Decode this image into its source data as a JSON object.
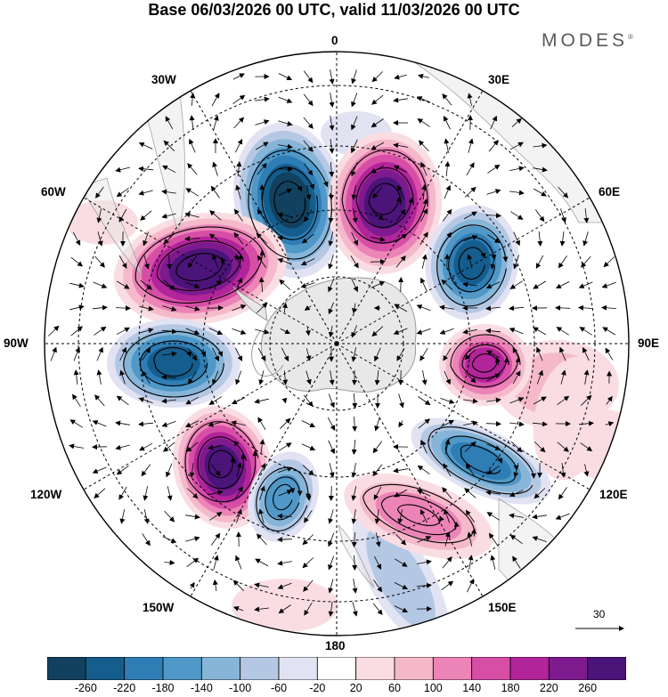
{
  "title": "Base 06/03/2026 00 UTC, valid 11/03/2026 00 UTC",
  "brand": "MODES",
  "brand_mark": "®",
  "longitude_labels": {
    "lon_0": "0",
    "lon_30e": "30E",
    "lon_60e": "60E",
    "lon_90e": "90E",
    "lon_120e": "120E",
    "lon_150e": "150E",
    "lon_180": "180",
    "lon_150w": "150W",
    "lon_120w": "120W",
    "lon_90w": "90W",
    "lon_60w": "60W",
    "lon_30w": "30W"
  },
  "vector_reference": {
    "value": "30"
  },
  "colorbar": {
    "labels": [
      "-260",
      "-220",
      "-180",
      "-140",
      "-100",
      "-60",
      "-20",
      "20",
      "60",
      "100",
      "140",
      "180",
      "220",
      "260"
    ],
    "colors": [
      "#12415f",
      "#155d8c",
      "#2f7db5",
      "#4f98c8",
      "#86b5d8",
      "#b4c8e4",
      "#e1e2f2",
      "#ffffff",
      "#f9dde2",
      "#f5b9cb",
      "#ec84b7",
      "#d64ea6",
      "#b2249a",
      "#7d1a8e",
      "#4b1479"
    ]
  },
  "map": {
    "projection": "south-polar-stereographic",
    "anomalies": [
      {
        "name": "low-30w",
        "value": -260
      },
      {
        "name": "high-20e",
        "value": 260
      },
      {
        "name": "high-65w",
        "value": 260
      },
      {
        "name": "low-65e",
        "value": -240
      },
      {
        "name": "low-90w",
        "value": -250
      },
      {
        "name": "high-95e",
        "value": 200
      },
      {
        "name": "high-130w",
        "value": 260
      },
      {
        "name": "low-125e",
        "value": -180
      },
      {
        "name": "low-150w",
        "value": -160
      },
      {
        "name": "high-155e",
        "value": 120
      }
    ]
  }
}
